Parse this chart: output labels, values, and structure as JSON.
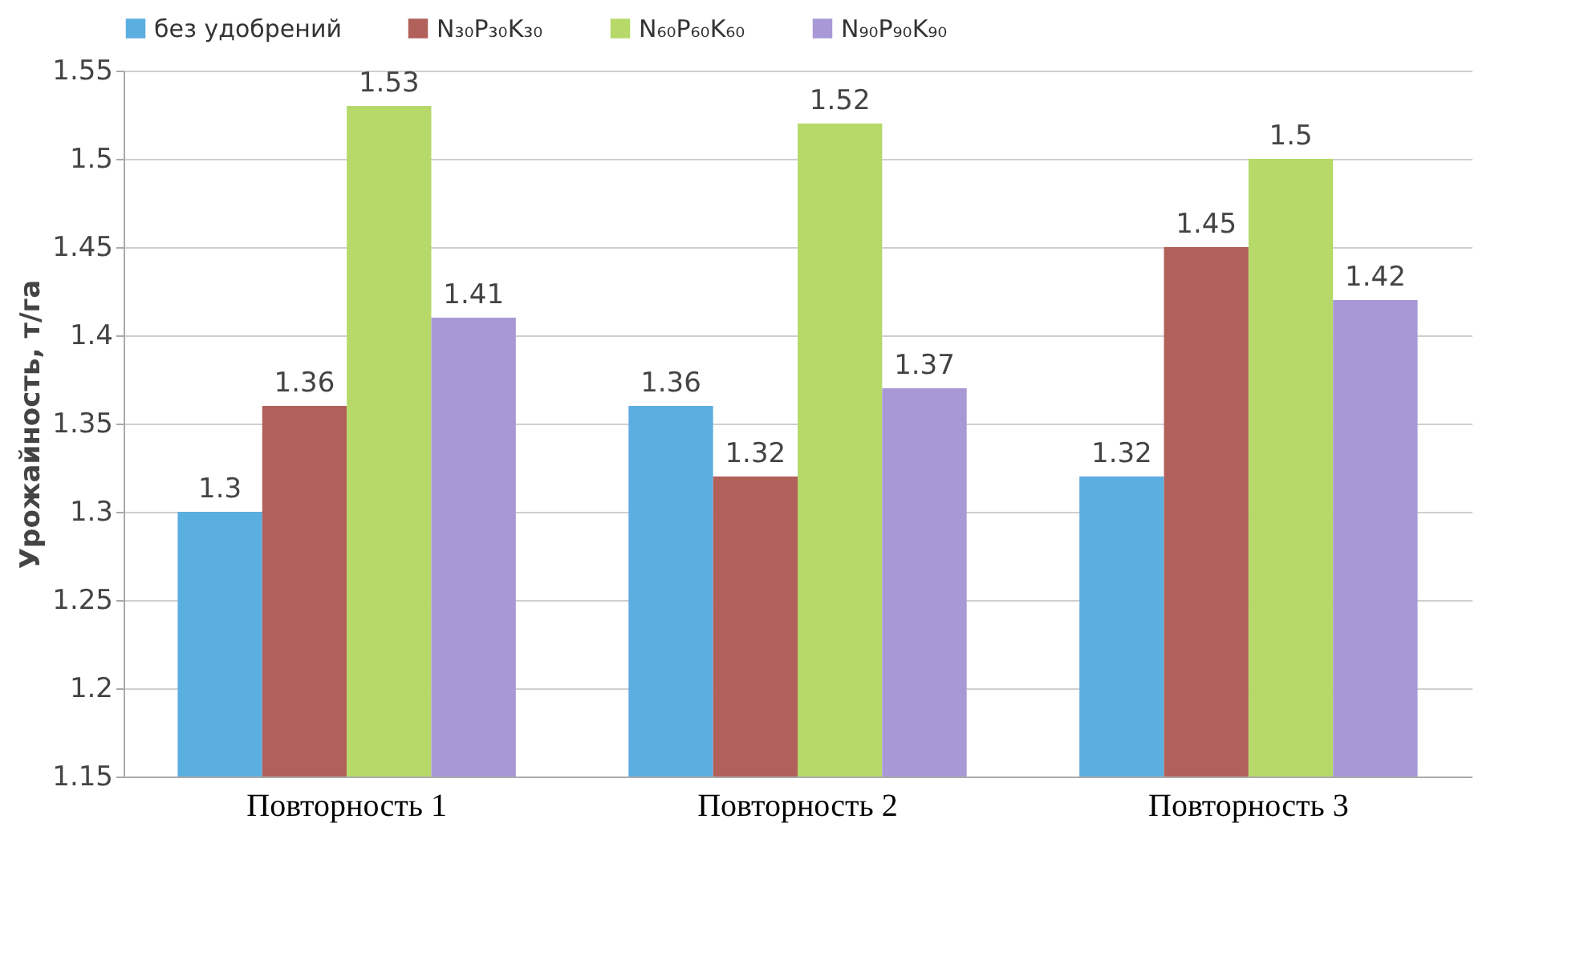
{
  "chart_data": {
    "type": "bar",
    "ylabel": "Урожайность, т/га",
    "categories": [
      "Повторность 1",
      "Повторность 2",
      "Повторность 3"
    ],
    "series": [
      {
        "name": "без удобрений",
        "color": "#5aaee0",
        "values": [
          1.3,
          1.36,
          1.32
        ]
      },
      {
        "name": "N₃₀P₃₀K₃₀",
        "color": "#b2605a",
        "values": [
          1.36,
          1.32,
          1.45
        ]
      },
      {
        "name": "N₆₀P₆₀K₆₀",
        "color": "#b6d96a",
        "values": [
          1.53,
          1.52,
          1.5
        ]
      },
      {
        "name": "N₉₀P₉₀K₉₀",
        "color": "#a899d6",
        "values": [
          1.41,
          1.37,
          1.42
        ]
      }
    ],
    "ylim": [
      1.15,
      1.55
    ],
    "yticks": [
      1.15,
      1.2,
      1.25,
      1.3,
      1.35,
      1.4,
      1.45,
      1.5,
      1.55
    ],
    "grid": "y",
    "legend": "top",
    "data_labels": true
  }
}
